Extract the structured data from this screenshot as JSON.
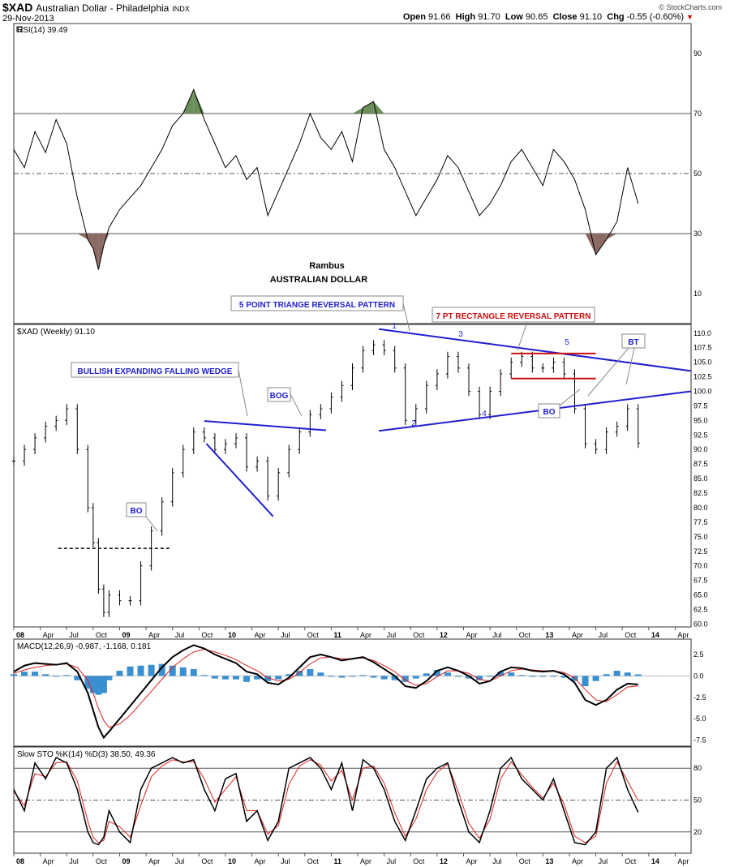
{
  "header": {
    "symbol": "$XAD",
    "description": "Australian Dollar - Philadelphia",
    "exchange": "INDX",
    "date": "29-Nov-2013",
    "open_label": "Open",
    "open": "91.66",
    "high_label": "High",
    "high": "91.70",
    "low_label": "Low",
    "low": "90.65",
    "close_label": "Close",
    "close": "91.10",
    "chg_label": "Chg",
    "chg": "-0.55 (-0.60%)",
    "credit": "© StockCharts.com"
  },
  "colors": {
    "frame": "#333333",
    "bars": "#000000",
    "rsi_line": "#000000",
    "rsi_overbought_fill": "#6b8e5a",
    "rsi_oversold_fill": "#8b6a63",
    "trendline_blue": "#1f1fd0",
    "rectangle_red": "#cc1111",
    "annotation_blue": "#1f1fd0",
    "annotation_red": "#cc1111",
    "macd_hist": "#3a8fd0",
    "signal_red": "#dd2222"
  },
  "chart_data": [
    {
      "type": "line",
      "panel": "rsi",
      "label": "RSI(14) 39.49",
      "ylim": [
        0,
        100
      ],
      "yticks": [
        10,
        30,
        50,
        70,
        90
      ],
      "levels": [
        30,
        50,
        70
      ],
      "x": [
        2008.0,
        2008.1,
        2008.2,
        2008.3,
        2008.4,
        2008.5,
        2008.6,
        2008.7,
        2008.75,
        2008.8,
        2008.85,
        2008.9,
        2009.0,
        2009.1,
        2009.2,
        2009.3,
        2009.4,
        2009.5,
        2009.6,
        2009.7,
        2009.8,
        2009.9,
        2010.0,
        2010.1,
        2010.2,
        2010.3,
        2010.4,
        2010.5,
        2010.6,
        2010.7,
        2010.8,
        2010.9,
        2011.0,
        2011.1,
        2011.2,
        2011.3,
        2011.4,
        2011.5,
        2011.6,
        2011.7,
        2011.8,
        2011.9,
        2012.0,
        2012.1,
        2012.2,
        2012.3,
        2012.4,
        2012.5,
        2012.6,
        2012.7,
        2012.8,
        2012.9,
        2013.0,
        2013.1,
        2013.2,
        2013.3,
        2013.4,
        2013.5,
        2013.6,
        2013.7,
        2013.8,
        2013.9
      ],
      "values": [
        58,
        52,
        64,
        57,
        68,
        60,
        42,
        28,
        25,
        18,
        26,
        32,
        38,
        42,
        46,
        52,
        58,
        66,
        70,
        78,
        68,
        60,
        52,
        56,
        48,
        52,
        36,
        44,
        52,
        60,
        70,
        62,
        58,
        64,
        54,
        72,
        74,
        58,
        52,
        44,
        36,
        42,
        48,
        56,
        52,
        44,
        36,
        40,
        46,
        54,
        58,
        52,
        46,
        58,
        54,
        48,
        38,
        23,
        28,
        34,
        52,
        40
      ],
      "series": [
        {
          "name": "RSI(14)",
          "last": "39.49"
        }
      ]
    },
    {
      "type": "bar",
      "panel": "price",
      "label": "$XAD (Weekly) 91.10",
      "ylim": [
        59.5,
        111.5
      ],
      "yticks": [
        60.0,
        62.5,
        65.0,
        67.5,
        70.0,
        72.5,
        75.0,
        77.5,
        80.0,
        82.5,
        85.0,
        87.5,
        90.0,
        92.5,
        95.0,
        97.5,
        100.0,
        102.5,
        105.0,
        107.5,
        110.0
      ],
      "x": [
        2008.0,
        2008.1,
        2008.2,
        2008.3,
        2008.4,
        2008.5,
        2008.6,
        2008.7,
        2008.75,
        2008.8,
        2008.85,
        2008.9,
        2009.0,
        2009.1,
        2009.2,
        2009.3,
        2009.4,
        2009.5,
        2009.6,
        2009.7,
        2009.8,
        2009.9,
        2010.0,
        2010.1,
        2010.2,
        2010.3,
        2010.4,
        2010.5,
        2010.6,
        2010.7,
        2010.8,
        2010.9,
        2011.0,
        2011.1,
        2011.2,
        2011.3,
        2011.4,
        2011.5,
        2011.6,
        2011.7,
        2011.8,
        2011.9,
        2012.0,
        2012.1,
        2012.2,
        2012.3,
        2012.4,
        2012.5,
        2012.6,
        2012.7,
        2012.8,
        2012.9,
        2013.0,
        2013.1,
        2013.2,
        2013.3,
        2013.4,
        2013.5,
        2013.6,
        2013.7,
        2013.8,
        2013.9
      ],
      "close": [
        88,
        90,
        92,
        94,
        95,
        97,
        90,
        80,
        74,
        66,
        62,
        65,
        64,
        64,
        70,
        76,
        81,
        86,
        90,
        93,
        92,
        90,
        91,
        92,
        87,
        88,
        82,
        86,
        90,
        93,
        96,
        97,
        99,
        101,
        104,
        107,
        108,
        107,
        104,
        95,
        97,
        101,
        103,
        106,
        104,
        100,
        96,
        100,
        103,
        105,
        106,
        104,
        104,
        105,
        103,
        97,
        91,
        90,
        93,
        94,
        97,
        91.1
      ]
    },
    {
      "type": "line",
      "panel": "macd",
      "label": "MACD(12,26,9) -0.987, -1.168, 0.181",
      "ylim": [
        -8.2,
        4.3
      ],
      "yticks": [
        -7.5,
        -5.0,
        -2.5,
        0.0,
        2.5
      ],
      "x": [
        2008.0,
        2008.1,
        2008.2,
        2008.3,
        2008.4,
        2008.5,
        2008.6,
        2008.7,
        2008.75,
        2008.8,
        2008.85,
        2008.9,
        2009.0,
        2009.1,
        2009.2,
        2009.3,
        2009.4,
        2009.5,
        2009.6,
        2009.7,
        2009.8,
        2009.9,
        2010.0,
        2010.1,
        2010.2,
        2010.3,
        2010.4,
        2010.5,
        2010.6,
        2010.7,
        2010.8,
        2010.9,
        2011.0,
        2011.1,
        2011.2,
        2011.3,
        2011.4,
        2011.5,
        2011.6,
        2011.7,
        2011.8,
        2011.9,
        2012.0,
        2012.1,
        2012.2,
        2012.3,
        2012.4,
        2012.5,
        2012.6,
        2012.7,
        2012.8,
        2012.9,
        2013.0,
        2013.1,
        2013.2,
        2013.3,
        2013.4,
        2013.5,
        2013.6,
        2013.7,
        2013.8,
        2013.9
      ],
      "series": [
        {
          "name": "MACD(12,26,9)",
          "last": "-0.987",
          "values": [
            0.5,
            1.2,
            1.5,
            1.4,
            1.3,
            1.5,
            0.5,
            -2.0,
            -4.0,
            -6.0,
            -7.2,
            -6.5,
            -5.0,
            -3.5,
            -2.0,
            -0.5,
            1.0,
            2.2,
            3.0,
            3.6,
            3.2,
            2.5,
            2.0,
            1.5,
            0.5,
            0.2,
            -0.8,
            -1.0,
            -0.2,
            1.0,
            2.2,
            2.5,
            2.2,
            1.8,
            2.0,
            2.2,
            1.6,
            0.8,
            0.0,
            -1.2,
            -1.4,
            -0.6,
            0.6,
            1.0,
            0.6,
            0.0,
            -0.9,
            -0.6,
            0.5,
            1.0,
            0.9,
            0.6,
            0.5,
            0.6,
            0.2,
            -0.8,
            -2.8,
            -3.4,
            -2.8,
            -1.6,
            -0.9,
            -1.0
          ]
        },
        {
          "name": "Signal",
          "last": "-1.168",
          "values": [
            0.3,
            0.7,
            1.0,
            1.2,
            1.3,
            1.4,
            1.0,
            -0.5,
            -2.0,
            -3.8,
            -5.2,
            -6.0,
            -5.6,
            -4.6,
            -3.2,
            -1.8,
            -0.4,
            1.0,
            2.0,
            2.8,
            3.1,
            2.8,
            2.4,
            1.9,
            1.2,
            0.6,
            -0.2,
            -0.6,
            -0.4,
            0.4,
            1.4,
            2.1,
            2.2,
            2.0,
            2.0,
            2.1,
            1.8,
            1.2,
            0.5,
            -0.5,
            -1.1,
            -0.9,
            -0.1,
            0.6,
            0.6,
            0.3,
            -0.4,
            -0.6,
            0.0,
            0.6,
            0.8,
            0.7,
            0.6,
            0.6,
            0.4,
            -0.2,
            -1.6,
            -2.8,
            -3.0,
            -2.2,
            -1.3,
            -1.17
          ]
        },
        {
          "name": "Histogram",
          "last": "0.181",
          "values": [
            0.2,
            0.5,
            0.5,
            0.2,
            0.0,
            0.1,
            -0.5,
            -1.5,
            -2.0,
            -2.2,
            -2.0,
            -0.5,
            0.6,
            1.1,
            1.2,
            1.3,
            1.4,
            1.2,
            1.0,
            0.8,
            0.1,
            -0.3,
            -0.4,
            -0.4,
            -0.7,
            -0.4,
            -0.6,
            -0.4,
            0.2,
            0.6,
            0.8,
            0.4,
            0.0,
            -0.2,
            0.0,
            0.1,
            -0.2,
            -0.4,
            -0.5,
            -0.7,
            -0.3,
            0.3,
            0.7,
            0.4,
            0.0,
            -0.3,
            -0.5,
            0.0,
            0.5,
            0.4,
            0.1,
            -0.1,
            -0.1,
            0.0,
            -0.2,
            -0.6,
            -1.2,
            -0.6,
            0.2,
            0.6,
            0.4,
            0.18
          ]
        }
      ]
    },
    {
      "type": "line",
      "panel": "stochastic",
      "label": "Slow STO %K(14) %D(3) 38.50, 49.36",
      "ylim": [
        0,
        100
      ],
      "yticks": [
        20,
        50,
        80
      ],
      "levels": [
        20,
        50,
        80
      ],
      "x": [
        2008.0,
        2008.1,
        2008.2,
        2008.3,
        2008.4,
        2008.5,
        2008.6,
        2008.7,
        2008.75,
        2008.8,
        2008.85,
        2008.9,
        2009.0,
        2009.1,
        2009.2,
        2009.3,
        2009.4,
        2009.5,
        2009.6,
        2009.7,
        2009.8,
        2009.9,
        2010.0,
        2010.1,
        2010.2,
        2010.3,
        2010.4,
        2010.5,
        2010.6,
        2010.7,
        2010.8,
        2010.9,
        2011.0,
        2011.1,
        2011.2,
        2011.3,
        2011.4,
        2011.5,
        2011.6,
        2011.7,
        2011.8,
        2011.9,
        2012.0,
        2012.1,
        2012.2,
        2012.3,
        2012.4,
        2012.5,
        2012.6,
        2012.7,
        2012.8,
        2012.9,
        2013.0,
        2013.1,
        2013.2,
        2013.3,
        2013.4,
        2013.5,
        2013.6,
        2013.7,
        2013.8,
        2013.9
      ],
      "series": [
        {
          "name": "%K(14)",
          "last": "38.50",
          "values": [
            60,
            40,
            85,
            70,
            90,
            85,
            60,
            20,
            10,
            8,
            15,
            40,
            20,
            10,
            60,
            80,
            85,
            90,
            85,
            88,
            60,
            40,
            70,
            75,
            30,
            40,
            12,
            30,
            80,
            85,
            90,
            80,
            60,
            85,
            40,
            88,
            80,
            60,
            30,
            12,
            40,
            70,
            80,
            85,
            50,
            20,
            10,
            40,
            80,
            90,
            70,
            60,
            50,
            70,
            40,
            10,
            8,
            20,
            80,
            90,
            60,
            38.5
          ]
        },
        {
          "name": "%D(3)",
          "last": "49.36",
          "values": [
            58,
            45,
            75,
            72,
            85,
            86,
            68,
            30,
            15,
            10,
            12,
            30,
            25,
            15,
            45,
            72,
            82,
            88,
            86,
            86,
            70,
            48,
            60,
            72,
            40,
            40,
            18,
            26,
            65,
            82,
            88,
            83,
            68,
            78,
            50,
            80,
            82,
            66,
            38,
            16,
            32,
            60,
            76,
            84,
            58,
            28,
            14,
            32,
            70,
            86,
            74,
            62,
            52,
            66,
            46,
            16,
            10,
            16,
            66,
            86,
            68,
            49.36
          ]
        }
      ]
    }
  ],
  "price_axis": {
    "x_ticks": [
      "08",
      "Apr",
      "Jul",
      "Oct",
      "09",
      "Apr",
      "Jul",
      "Oct",
      "10",
      "Apr",
      "Jul",
      "Oct",
      "11",
      "Apr",
      "Jul",
      "Oct",
      "12",
      "Apr",
      "Jul",
      "Oct",
      "13",
      "Apr",
      "Jul",
      "Oct",
      "14",
      "Apr"
    ],
    "x_tick_values": [
      2008.0,
      2008.25,
      2008.5,
      2008.75,
      2009.0,
      2009.25,
      2009.5,
      2009.75,
      2010.0,
      2010.25,
      2010.5,
      2010.75,
      2011.0,
      2011.25,
      2011.5,
      2011.75,
      2012.0,
      2012.25,
      2012.5,
      2012.75,
      2013.0,
      2013.25,
      2013.5,
      2013.75,
      2014.0,
      2014.25
    ]
  },
  "annotations": {
    "author": "Rambus",
    "subject": "AUSTRALIAN DOLLAR",
    "wedge_label": "BULLISH EXPANDING FALLING WEDGE",
    "triangle_label": "5 POINT TRIANGE REVERSAL PATTERN",
    "rectangle_label": "7 PT RECTANGLE REVERSAL PATTERN",
    "bo1": "BO",
    "bog": "BOG",
    "bo2": "BO",
    "bt": "BT",
    "pt1": "1",
    "pt2": "2",
    "pt3": "3",
    "pt4": "4",
    "pt5": "5"
  }
}
